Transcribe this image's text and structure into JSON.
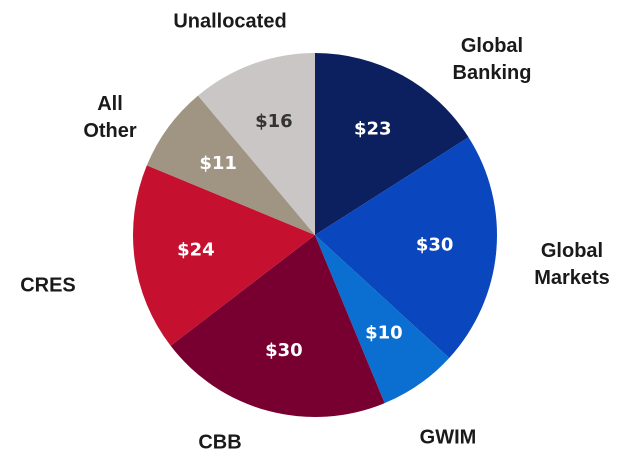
{
  "chart_data": {
    "type": "pie",
    "categories": [
      "Global Banking",
      "Global Markets",
      "GWIM",
      "CBB",
      "CRES",
      "All Other",
      "Unallocated"
    ],
    "values": [
      23,
      30,
      10,
      30,
      24,
      11,
      16
    ],
    "value_labels": [
      "$23",
      "$30",
      "$10",
      "$30",
      "$24",
      "$11",
      "$16"
    ],
    "colors": [
      "#0c1f5e",
      "#0a46be",
      "#0a6fd0",
      "#780030",
      "#c5102f",
      "#a09483",
      "#cbc6c6"
    ]
  }
}
